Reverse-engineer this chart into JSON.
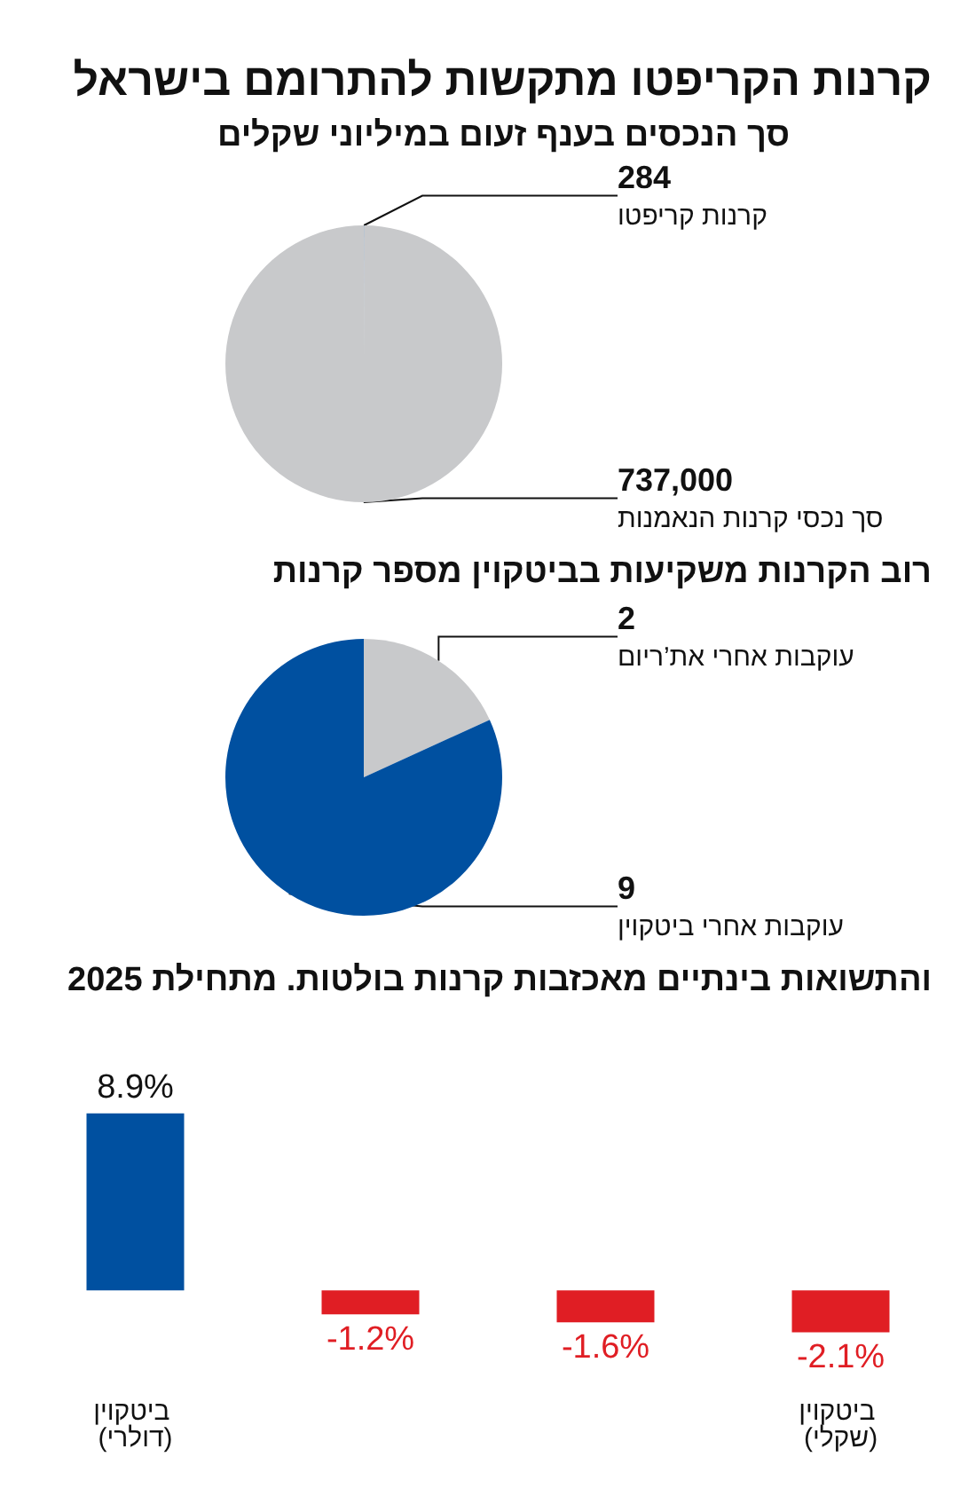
{
  "chart_data": [
    {
      "type": "pie",
      "title": "קרנות הקריפטו מתקשות להתרומם בישראל",
      "subtitle": "סך הנכסים בענף זעום במיליוני שקלים",
      "categories": [
        "קרנות קריפטו",
        "סך נכסי קרנות הנאמנות"
      ],
      "values": [
        284,
        737000
      ],
      "colors": [
        "#0050a0",
        "#c8c9cb"
      ],
      "value_labels": [
        "284",
        "737,000"
      ],
      "legend": false
    },
    {
      "type": "pie",
      "title": "רוב הקרנות משקיעות בביטקוין מספר קרנות",
      "categories": [
        "עוקבות אחרי את’ריום",
        "עוקבות אחרי ביטקוין"
      ],
      "values": [
        2,
        9
      ],
      "colors": [
        "#c8c9cb",
        "#0050a0"
      ],
      "value_labels": [
        "2",
        "9"
      ],
      "legend": false
    },
    {
      "type": "bar",
      "title": "והתשואות בינתיים מאכזבות קרנות בולטות. מתחילת 2025",
      "categories": [
        "ביטקוין (דולרי)",
        null,
        null,
        "ביטקוין (שקלי)"
      ],
      "values": [
        8.9,
        -1.2,
        -1.6,
        -2.1
      ],
      "colors": [
        "#0050a0",
        "#e01e24",
        "#e01e24",
        "#e01e24"
      ],
      "value_labels": [
        "8.9%",
        "-1.2%",
        "-1.6%",
        "-2.1%"
      ],
      "legend": false,
      "grid": false
    }
  ]
}
